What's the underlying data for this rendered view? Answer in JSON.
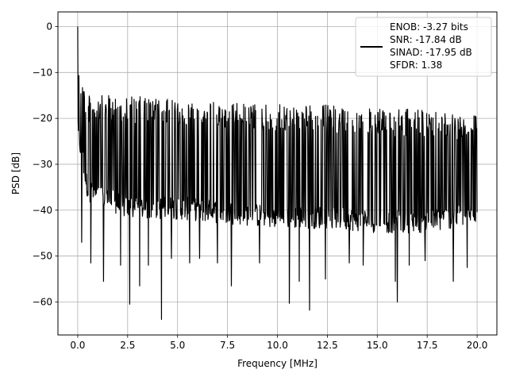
{
  "chart_data": {
    "type": "line",
    "title": "",
    "xlabel": "Frequency [MHz]",
    "ylabel": "PSD [dB]",
    "xlim": [
      -0.99,
      20.99
    ],
    "ylim": [
      -67.2,
      3.2
    ],
    "grid": true,
    "x_ticks": [
      0.0,
      2.5,
      5.0,
      7.5,
      10.0,
      12.5,
      15.0,
      17.5,
      20.0
    ],
    "x_tick_labels": [
      "0.0",
      "2.5",
      "5.0",
      "7.5",
      "10.0",
      "12.5",
      "15.0",
      "17.5",
      "20.0"
    ],
    "y_ticks": [
      0,
      -10,
      -20,
      -30,
      -40,
      -50,
      -60
    ],
    "y_tick_labels": [
      "0",
      "−10",
      "−20",
      "−30",
      "−40",
      "−50",
      "−60"
    ],
    "legend_position": "top-right",
    "legend_lines": [
      "ENOB: -3.27 bits",
      "SNR: -17.84 dB",
      "SINAD: -17.95 dB",
      "SFDR: 1.38"
    ],
    "series": [
      {
        "color": "#000000",
        "description": "Dense noise-floor PSD spanning 0–20 MHz; peak 0 dB at 0 MHz, upper envelope about −14 to −24 dB, body −20 to −40 dB, deep dips reaching −64 dB",
        "upper_envelope": [
          [
            0.0,
            0.0
          ],
          [
            0.1,
            -9
          ],
          [
            0.5,
            -15
          ],
          [
            2.5,
            -15
          ],
          [
            5.0,
            -16
          ],
          [
            7.5,
            -16.5
          ],
          [
            10.0,
            -17
          ],
          [
            12.5,
            -17
          ],
          [
            15.0,
            -18
          ],
          [
            17.5,
            -18
          ],
          [
            20.0,
            -19
          ]
        ],
        "lower_envelope": [
          [
            0.0,
            -25
          ],
          [
            0.5,
            -38
          ],
          [
            2.5,
            -42
          ],
          [
            5.0,
            -42
          ],
          [
            7.5,
            -43
          ],
          [
            10.0,
            -44
          ],
          [
            12.5,
            -44
          ],
          [
            15.0,
            -45
          ],
          [
            17.5,
            -45
          ],
          [
            20.0,
            -43
          ]
        ],
        "deep_dips": [
          [
            0.2,
            -47
          ],
          [
            0.65,
            -51.5
          ],
          [
            1.3,
            -55.5
          ],
          [
            2.15,
            -52
          ],
          [
            2.6,
            -60.5
          ],
          [
            3.1,
            -56.5
          ],
          [
            3.55,
            -52
          ],
          [
            4.2,
            -63.8
          ],
          [
            4.7,
            -50.5
          ],
          [
            5.6,
            -51.5
          ],
          [
            6.1,
            -50.5
          ],
          [
            7.0,
            -51.5
          ],
          [
            7.7,
            -56.5
          ],
          [
            9.1,
            -51.5
          ],
          [
            10.6,
            -60.3
          ],
          [
            11.1,
            -55.5
          ],
          [
            11.6,
            -61.8
          ],
          [
            12.4,
            -55
          ],
          [
            13.6,
            -51.5
          ],
          [
            14.3,
            -52
          ],
          [
            15.9,
            -55.5
          ],
          [
            16.0,
            -60
          ],
          [
            16.6,
            -52
          ],
          [
            17.4,
            -51
          ],
          [
            18.8,
            -55.5
          ],
          [
            19.5,
            -52.5
          ]
        ]
      }
    ]
  }
}
